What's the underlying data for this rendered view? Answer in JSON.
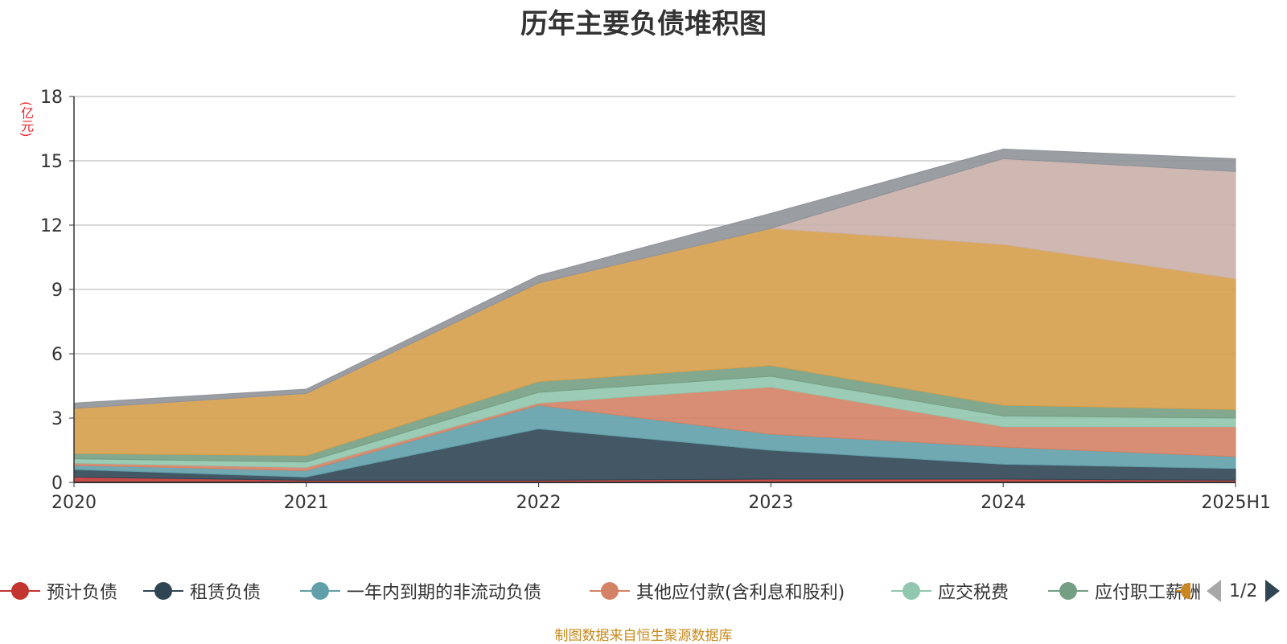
{
  "title": "历年主要负债堆积图",
  "unit_label": "(亿元)",
  "source_note": "制图数据来自恒生聚源数据库",
  "legend": {
    "page_indicator": "1/2",
    "items": [
      {
        "label": "预计负债",
        "color": "#c23531"
      },
      {
        "label": "租赁负债",
        "color": "#2f4554"
      },
      {
        "label": "一年内到期的非流动负债",
        "color": "#61a0a8"
      },
      {
        "label": "其他应付款(含利息和股利)",
        "color": "#d48265"
      },
      {
        "label": "应交税费",
        "color": "#91c7ae"
      },
      {
        "label": "应付职工薪酬",
        "color": "#749f83"
      }
    ]
  },
  "chart_data": {
    "type": "area",
    "stacked": true,
    "categories": [
      "2020",
      "2021",
      "2022",
      "2023",
      "2024",
      "2025H1"
    ],
    "ylim": [
      0,
      18
    ],
    "yticks": [
      "0",
      "3",
      "6",
      "9",
      "12",
      "15",
      "18"
    ],
    "grid": true,
    "legend_position": "bottom",
    "series": [
      {
        "name": "预计负债",
        "color": "#c23531",
        "values": [
          0.25,
          0.1,
          0.1,
          0.15,
          0.15,
          0.1
        ]
      },
      {
        "name": "租赁负债",
        "color": "#2f4554",
        "values": [
          0.35,
          0.15,
          2.4,
          1.35,
          0.7,
          0.55
        ]
      },
      {
        "name": "一年内到期的非流动负债",
        "color": "#61a0a8",
        "values": [
          0.2,
          0.3,
          1.1,
          0.75,
          0.8,
          0.55
        ]
      },
      {
        "name": "其他应付款(含利息和股利)",
        "color": "#d48265",
        "values": [
          0.1,
          0.15,
          0.1,
          2.2,
          0.95,
          1.4
        ]
      },
      {
        "name": "应交税费",
        "color": "#91c7ae",
        "values": [
          0.2,
          0.25,
          0.5,
          0.5,
          0.5,
          0.4
        ]
      },
      {
        "name": "应付职工薪酬",
        "color": "#749f83",
        "values": [
          0.25,
          0.3,
          0.5,
          0.5,
          0.5,
          0.4
        ]
      },
      {
        "name": "",
        "color": "#d69f4b",
        "values": [
          2.1,
          2.9,
          4.6,
          6.4,
          7.5,
          6.1
        ]
      },
      {
        "name": "",
        "color": "#cbb0aa",
        "values": [
          0,
          0,
          0,
          0,
          4.0,
          5.0
        ]
      },
      {
        "name": "",
        "color": "#8f9298",
        "values": [
          0.25,
          0.2,
          0.35,
          0.7,
          0.45,
          0.6
        ]
      }
    ]
  }
}
